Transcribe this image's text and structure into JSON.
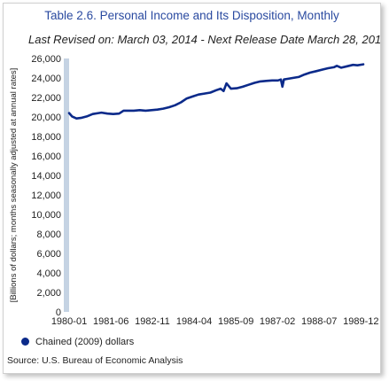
{
  "header": {
    "title": "Table 2.6. Personal Income and Its Disposition, Monthly",
    "subtitle": "Last Revised on: March 03, 2014 - Next Release Date March 28, 201"
  },
  "source": "Source: U.S. Bureau of Economic Analysis",
  "colors": {
    "line": "#0b2a8a",
    "axis_bar": "#c5d3e3",
    "title": "#2a4aa0"
  },
  "chart_data": {
    "type": "line",
    "ylabel": "[Billions of dollars; months seasonally adjusted at annual rates]",
    "xlabel": "",
    "ylim": [
      0,
      26000
    ],
    "xlim": [
      1980.0,
      1990.0
    ],
    "y_ticks": [
      0,
      2000,
      4000,
      6000,
      8000,
      10000,
      12000,
      14000,
      16000,
      18000,
      20000,
      22000,
      24000,
      26000
    ],
    "y_tick_labels": [
      "0",
      "2,000",
      "4,000",
      "6,000",
      "8,000",
      "10,000",
      "12,000",
      "14,000",
      "16,000",
      "18,000",
      "20,000",
      "22,000",
      "24,000",
      "26,000"
    ],
    "x_ticks": [
      1980.0,
      1981.42,
      1982.83,
      1984.25,
      1985.67,
      1987.08,
      1988.5,
      1989.92
    ],
    "x_tick_labels": [
      "1980-01",
      "1981-06",
      "1982-11",
      "1984-04",
      "1985-09",
      "1987-02",
      "1988-07",
      "1989-12"
    ],
    "legend_position": "bottom-left",
    "grid": false,
    "series": [
      {
        "name": "Chained (2009) dollars",
        "x": [
          1980.0,
          1980.1,
          1980.25,
          1980.4,
          1980.6,
          1980.8,
          1981.0,
          1981.1,
          1981.3,
          1981.5,
          1981.7,
          1981.85,
          1982.0,
          1982.2,
          1982.4,
          1982.6,
          1982.8,
          1983.0,
          1983.2,
          1983.4,
          1983.6,
          1983.8,
          1984.0,
          1984.2,
          1984.4,
          1984.6,
          1984.8,
          1985.0,
          1985.15,
          1985.25,
          1985.35,
          1985.5,
          1985.7,
          1985.9,
          1986.1,
          1986.3,
          1986.5,
          1986.7,
          1986.9,
          1987.1,
          1987.2,
          1987.25,
          1987.3,
          1987.4,
          1987.6,
          1987.8,
          1988.0,
          1988.2,
          1988.4,
          1988.6,
          1988.8,
          1989.0,
          1989.1,
          1989.25,
          1989.45,
          1989.65,
          1989.8,
          1990.0
        ],
        "values": [
          20400,
          20050,
          19850,
          19900,
          20050,
          20300,
          20400,
          20450,
          20350,
          20300,
          20350,
          20650,
          20650,
          20650,
          20700,
          20650,
          20700,
          20750,
          20850,
          21000,
          21200,
          21500,
          21900,
          22100,
          22300,
          22400,
          22500,
          22750,
          22900,
          22650,
          23450,
          22900,
          22950,
          23100,
          23300,
          23500,
          23650,
          23700,
          23750,
          23750,
          23850,
          23100,
          23850,
          23900,
          24000,
          24100,
          24350,
          24550,
          24700,
          24850,
          25000,
          25100,
          25250,
          25050,
          25200,
          25350,
          25300,
          25400
        ]
      }
    ]
  }
}
